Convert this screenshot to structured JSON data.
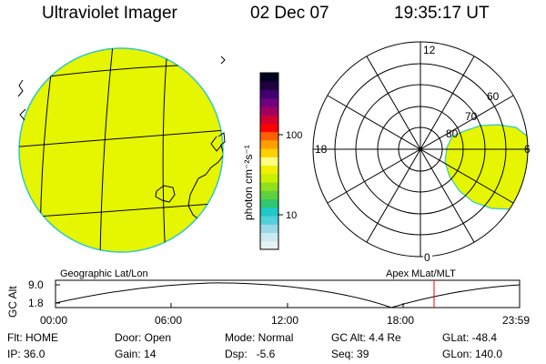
{
  "header": {
    "title": "Ultraviolet Imager",
    "date": "02 Dec 07",
    "time": "19:35:17 UT"
  },
  "colorbar": {
    "unit_label": "photon cm⁻²s⁻¹",
    "tick_100": "100",
    "tick_10": "10",
    "colors": [
      "#e6f2f2",
      "#c8eaf0",
      "#9ad8e8",
      "#50d0d8",
      "#20c8c8",
      "#30c870",
      "#60d040",
      "#90e020",
      "#c8f000",
      "#f0f000",
      "#ffff80",
      "#ffd000",
      "#ffa000",
      "#ff6000",
      "#ff0000",
      "#d00030",
      "#a00060",
      "#700080",
      "#400070",
      "#200040",
      "#000020"
    ],
    "fill_color": "#e6f500"
  },
  "geo_panel": {
    "caption": "Geographic Lat/Lon"
  },
  "polar_panel": {
    "caption": "Apex MLat/MLT",
    "mlt_12": "12",
    "mlt_18": "18",
    "mlt_6": "6",
    "mlt_0": "0",
    "lat_60": "60",
    "lat_70": "70",
    "lat_80": "80"
  },
  "altitude_plot": {
    "ylabel": "GC Alt",
    "ytick_top": "9.0",
    "ytick_bottom": "1.8",
    "xticks": [
      "00:00",
      "06:00",
      "12:00",
      "18:00",
      "23:59"
    ],
    "marker_color": "#ff0000",
    "marker_time": "19:35:17"
  },
  "footer": {
    "flt": "Flt: HOME",
    "ip": "IP: 36.0",
    "door": "Door: Open",
    "gain": "Gain: 14",
    "mode": "Mode: Normal",
    "dsp": "Dsp:   -5.6",
    "gcalt": "GC Alt: 4.4 Re",
    "seq": "Seq: 39",
    "glat": "GLat: -48.4",
    "glon": "GLon: 140.0"
  }
}
